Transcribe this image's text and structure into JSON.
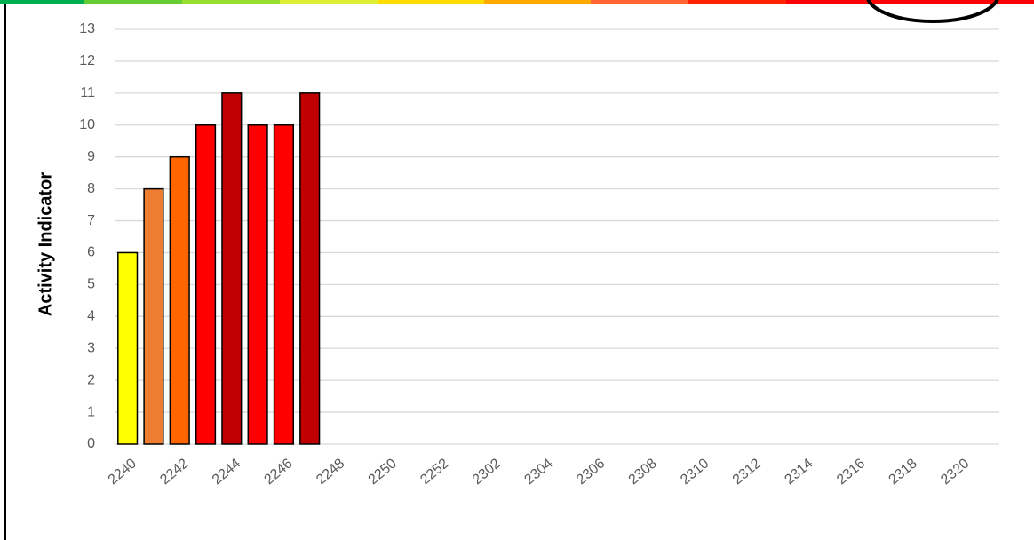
{
  "chart_data": {
    "type": "bar",
    "y_label": "Activity Indicator",
    "categories": [
      "2240",
      null,
      "2242",
      null,
      "2244",
      null,
      "2246",
      null,
      "2248",
      null,
      "2250",
      null,
      "2252",
      null,
      "2302",
      null,
      "2304",
      null,
      "2306",
      null,
      "2308",
      null,
      "2310",
      null,
      "2312",
      null,
      "2314",
      null,
      "2316",
      null,
      "2318",
      null,
      "2320",
      null
    ],
    "values": [
      6,
      8,
      9,
      10,
      11,
      10,
      10,
      11,
      null,
      null,
      null,
      null,
      null,
      null,
      null,
      null,
      null,
      null,
      null,
      null,
      null,
      null,
      null,
      null,
      null,
      null,
      null,
      null,
      null,
      null,
      null,
      null,
      null,
      null
    ],
    "colors": [
      "#ffff00",
      "#ed7d31",
      "#ff6600",
      "#ff0000",
      "#c00000",
      "#ff0000",
      "#ff0000",
      "#c00000",
      null,
      null,
      null,
      null,
      null,
      null,
      null,
      null,
      null,
      null,
      null,
      null,
      null,
      null,
      null,
      null,
      null,
      null,
      null,
      null,
      null,
      null,
      null,
      null,
      null,
      null
    ],
    "ylim": [
      0,
      13
    ],
    "yticks": [
      0,
      1,
      2,
      3,
      4,
      5,
      6,
      7,
      8,
      9,
      10,
      11,
      12,
      13
    ],
    "grid": true
  }
}
